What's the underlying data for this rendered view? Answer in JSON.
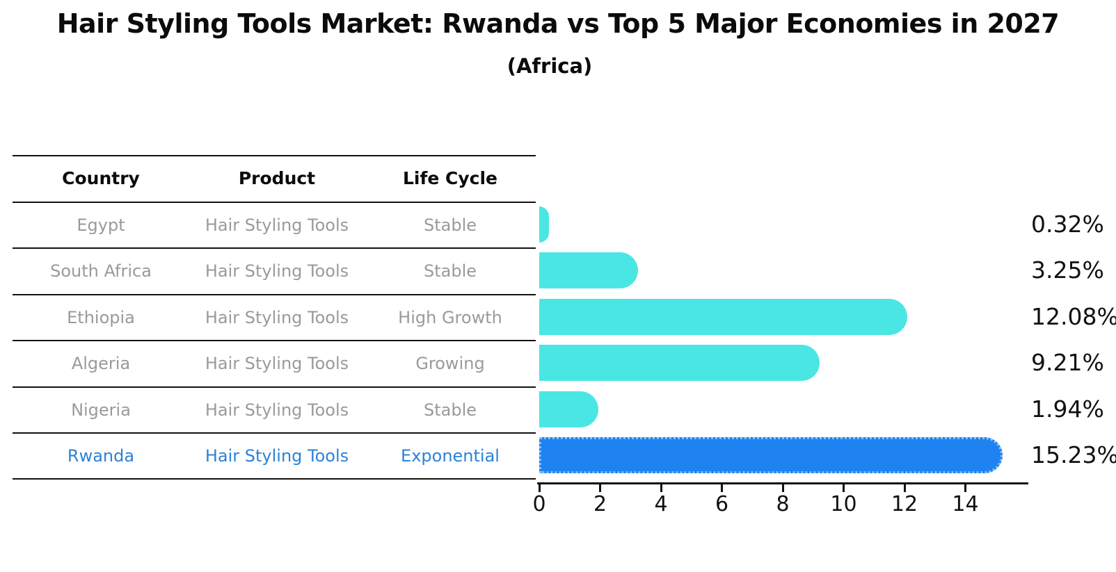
{
  "chart_data": {
    "type": "bar",
    "orientation": "horizontal",
    "title": "Hair Styling Tools Market: Rwanda vs Top 5 Major Economies in 2027",
    "subtitle": "(Africa)",
    "categories": [
      "Egypt",
      "South Africa",
      "Ethiopia",
      "Algeria",
      "Nigeria",
      "Rwanda"
    ],
    "values": [
      0.32,
      3.25,
      12.08,
      9.21,
      1.94,
      15.23
    ],
    "value_labels": [
      "0.32%",
      "3.25%",
      "12.08%",
      "9.21%",
      "1.94%",
      "15.23%"
    ],
    "xlim": [
      0,
      16
    ],
    "xticks": [
      0,
      2,
      4,
      6,
      8,
      10,
      12,
      14
    ],
    "grid": false,
    "legend": "none",
    "highlight_index": 5,
    "bar_color": "#4ae6e3",
    "highlight_bar_color": "#1e82f0",
    "highlight_border_color": "#86c0f8",
    "value_label_color": "#111111"
  },
  "table": {
    "headers": [
      "Country",
      "Product",
      "Life Cycle"
    ],
    "rows": [
      {
        "country": "Egypt",
        "product": "Hair Styling Tools",
        "life_cycle": "Stable"
      },
      {
        "country": "South Africa",
        "product": "Hair Styling Tools",
        "life_cycle": "Stable"
      },
      {
        "country": "Ethiopia",
        "product": "Hair Styling Tools",
        "life_cycle": "High Growth"
      },
      {
        "country": "Algeria",
        "product": "Hair Styling Tools",
        "life_cycle": "Growing"
      },
      {
        "country": "Nigeria",
        "product": "Hair Styling Tools",
        "life_cycle": "Stable"
      },
      {
        "country": "Rwanda",
        "product": "Hair Styling Tools",
        "life_cycle": "Exponential"
      }
    ],
    "highlight_row": "Rwanda",
    "text_color": "#9a9a9a",
    "highlight_text_color": "#2b82d9"
  }
}
